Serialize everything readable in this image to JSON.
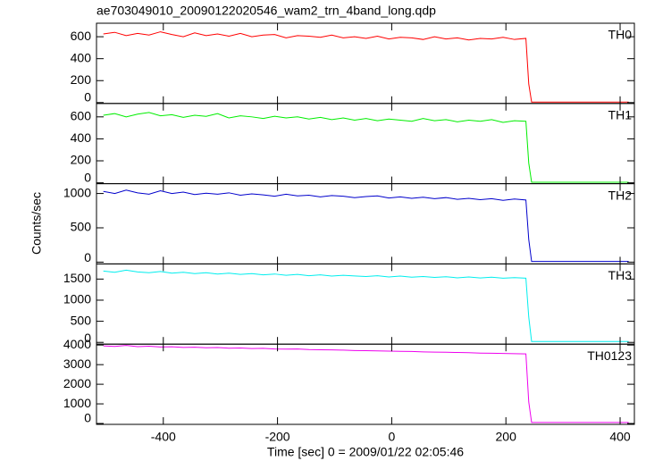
{
  "title": "ae703049010_20090122020546_wam2_trn_4band_long.qdp",
  "ylabel": "Counts/sec",
  "chart_data": [
    {
      "type": "line",
      "label": "TH0",
      "color": "#ff0000",
      "x": [
        -505,
        -485,
        -465,
        -445,
        -425,
        -405,
        -385,
        -365,
        -345,
        -325,
        -305,
        -285,
        -265,
        -245,
        -225,
        -205,
        -185,
        -165,
        -145,
        -125,
        -105,
        -85,
        -65,
        -45,
        -25,
        -5,
        15,
        35,
        55,
        75,
        95,
        115,
        135,
        155,
        175,
        195,
        215,
        235,
        240,
        245,
        300,
        350,
        400,
        415
      ],
      "values": [
        625,
        640,
        610,
        630,
        615,
        645,
        620,
        600,
        635,
        610,
        625,
        605,
        630,
        600,
        615,
        620,
        590,
        610,
        605,
        595,
        615,
        590,
        600,
        585,
        605,
        580,
        595,
        590,
        575,
        600,
        580,
        590,
        570,
        585,
        580,
        595,
        575,
        585,
        170,
        5,
        5,
        5,
        5,
        5
      ],
      "xlim": [
        -517,
        425
      ],
      "ylim": [
        -8,
        723
      ],
      "yticks": [
        0,
        200,
        400,
        600
      ]
    },
    {
      "type": "line",
      "label": "TH1",
      "color": "#00ee00",
      "x": [
        -505,
        -485,
        -465,
        -445,
        -425,
        -405,
        -385,
        -365,
        -345,
        -325,
        -305,
        -285,
        -265,
        -245,
        -225,
        -205,
        -185,
        -165,
        -145,
        -125,
        -105,
        -85,
        -65,
        -45,
        -25,
        -5,
        15,
        35,
        55,
        75,
        95,
        115,
        135,
        155,
        175,
        195,
        215,
        235,
        240,
        245,
        300,
        350,
        400,
        415
      ],
      "values": [
        615,
        630,
        600,
        625,
        640,
        610,
        620,
        595,
        615,
        605,
        630,
        590,
        610,
        600,
        585,
        605,
        590,
        600,
        580,
        595,
        575,
        590,
        570,
        585,
        565,
        580,
        570,
        560,
        585,
        565,
        575,
        555,
        570,
        560,
        575,
        550,
        565,
        560,
        180,
        5,
        5,
        5,
        5,
        5
      ],
      "xlim": [
        -517,
        425
      ],
      "ylim": [
        -8,
        722
      ],
      "yticks": [
        0,
        200,
        400,
        600
      ]
    },
    {
      "type": "line",
      "label": "TH2",
      "color": "#0000cc",
      "x": [
        -505,
        -485,
        -465,
        -445,
        -425,
        -405,
        -385,
        -365,
        -345,
        -325,
        -305,
        -285,
        -265,
        -245,
        -225,
        -205,
        -185,
        -165,
        -145,
        -125,
        -105,
        -85,
        -65,
        -45,
        -25,
        -5,
        15,
        35,
        55,
        75,
        95,
        115,
        135,
        155,
        175,
        195,
        215,
        235,
        240,
        245,
        300,
        350,
        400,
        415
      ],
      "values": [
        1030,
        1000,
        1050,
        1010,
        990,
        1040,
        1000,
        1020,
        985,
        1005,
        990,
        1010,
        975,
        995,
        980,
        960,
        990,
        965,
        975,
        950,
        970,
        960,
        940,
        955,
        965,
        935,
        950,
        930,
        945,
        925,
        940,
        915,
        930,
        910,
        925,
        900,
        920,
        905,
        330,
        10,
        10,
        10,
        10,
        10
      ],
      "xlim": [
        -517,
        425
      ],
      "ylim": [
        -26,
        1143
      ],
      "yticks": [
        0,
        500,
        1000
      ]
    },
    {
      "type": "line",
      "label": "TH3",
      "color": "#00eeee",
      "x": [
        -505,
        -485,
        -465,
        -445,
        -425,
        -405,
        -385,
        -365,
        -345,
        -325,
        -305,
        -285,
        -265,
        -245,
        -225,
        -205,
        -185,
        -165,
        -145,
        -125,
        -105,
        -85,
        -65,
        -45,
        -25,
        -5,
        15,
        35,
        55,
        75,
        95,
        115,
        135,
        155,
        175,
        195,
        215,
        235,
        240,
        245,
        300,
        350,
        400,
        415
      ],
      "values": [
        1690,
        1660,
        1710,
        1670,
        1650,
        1680,
        1640,
        1660,
        1630,
        1650,
        1620,
        1640,
        1610,
        1630,
        1600,
        1620,
        1590,
        1610,
        1580,
        1600,
        1570,
        1590,
        1575,
        1560,
        1580,
        1550,
        1570,
        1545,
        1560,
        1540,
        1555,
        1530,
        1550,
        1525,
        1545,
        1520,
        1535,
        1520,
        600,
        20,
        20,
        20,
        20,
        20
      ],
      "xlim": [
        -517,
        425
      ],
      "ylim": [
        -42,
        1859
      ],
      "yticks": [
        0,
        500,
        1000,
        1500
      ]
    },
    {
      "type": "line",
      "label": "TH0123",
      "color": "#ee00ee",
      "x": [
        -505,
        -485,
        -465,
        -445,
        -425,
        -405,
        -385,
        -365,
        -345,
        -325,
        -305,
        -285,
        -265,
        -245,
        -225,
        -205,
        -185,
        -165,
        -145,
        -125,
        -105,
        -85,
        -65,
        -45,
        -25,
        -5,
        15,
        35,
        55,
        75,
        95,
        115,
        135,
        155,
        175,
        195,
        215,
        235,
        240,
        245,
        300,
        350,
        400,
        415
      ],
      "values": [
        3960,
        3930,
        3980,
        3920,
        3940,
        3900,
        3910,
        3880,
        3890,
        3860,
        3870,
        3840,
        3850,
        3820,
        3830,
        3800,
        3790,
        3800,
        3770,
        3760,
        3750,
        3740,
        3720,
        3710,
        3700,
        3690,
        3680,
        3670,
        3650,
        3640,
        3630,
        3620,
        3610,
        3590,
        3580,
        3570,
        3560,
        3550,
        1100,
        50,
        50,
        50,
        50,
        50
      ],
      "xlim": [
        -517,
        425
      ],
      "ylim": [
        -45,
        4045
      ],
      "yticks": [
        0,
        1000,
        2000,
        3000,
        4000
      ],
      "xticks": [
        -400,
        -200,
        0,
        200,
        400
      ],
      "xlabel": "Time [sec] 0 = 2009/01/22 02:05:46"
    }
  ]
}
